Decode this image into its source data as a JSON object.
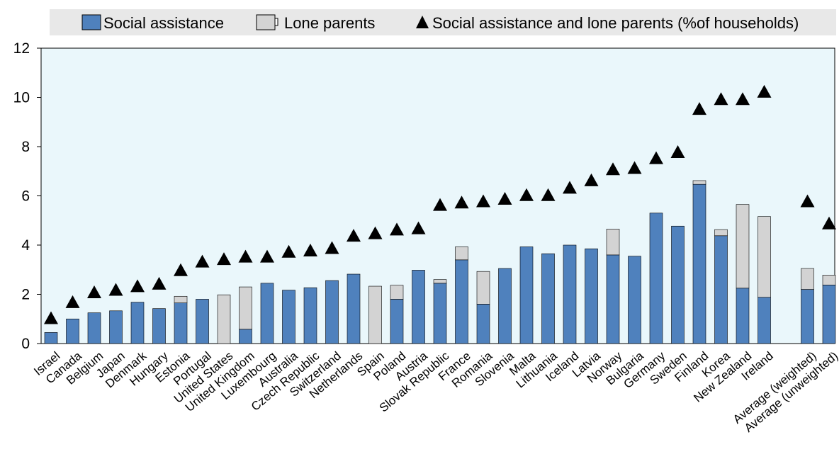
{
  "legend": {
    "social_assistance": "Social assistance",
    "lone_parents": "Lone parents",
    "combined": "Social assistance and lone parents (%of households)"
  },
  "colors": {
    "social_assistance": "#4f81bd",
    "lone_parents": "#d3d3d3",
    "marker": "#000000",
    "plot_background": "#eaf7fb",
    "legend_background": "#e8e8e8"
  },
  "chart_data": {
    "type": "bar",
    "stacked": true,
    "categories": [
      "Israel",
      "Canada",
      "Belgium",
      "Japan",
      "Denmark",
      "Hungary",
      "Estonia",
      "Portugal",
      "United States",
      "United Kingdom",
      "Luxembourg",
      "Australia",
      "Czech Republic",
      "Switzerland",
      "Netherlands",
      "Spain",
      "Poland",
      "Austria",
      "Slovak Republic",
      "France",
      "Romania",
      "Slovenia",
      "Malta",
      "Lithuania",
      "Iceland",
      "Latvia",
      "Norway",
      "Bulgaria",
      "Germany",
      "Sweden",
      "Finland",
      "Korea",
      "New Zealand",
      "Ireland",
      "",
      "Average (weighted)",
      "Average (unweighted)"
    ],
    "series": [
      {
        "name": "Social assistance",
        "kind": "bar",
        "values": [
          0.45,
          1.0,
          1.25,
          1.33,
          1.68,
          1.42,
          1.65,
          1.8,
          0,
          0.58,
          2.45,
          2.17,
          2.27,
          2.56,
          2.82,
          0,
          1.8,
          2.98,
          2.45,
          3.4,
          1.6,
          3.05,
          3.93,
          3.65,
          4.0,
          3.85,
          3.6,
          3.55,
          5.3,
          4.77,
          6.47,
          4.38,
          2.25,
          1.88,
          null,
          2.2,
          2.38
        ]
      },
      {
        "name": "Lone parents",
        "kind": "bar",
        "values": [
          0,
          0,
          0,
          0,
          0,
          0,
          0.27,
          0,
          1.98,
          1.72,
          0,
          0,
          0,
          0,
          0,
          2.33,
          0.57,
          0,
          0.15,
          0.53,
          1.33,
          0,
          0,
          0,
          0,
          0,
          1.05,
          0,
          0,
          0,
          0.15,
          0.25,
          3.4,
          3.28,
          null,
          0.85,
          0.4
        ]
      },
      {
        "name": "Social assistance and lone parents (%of households)",
        "kind": "marker",
        "values": [
          1.05,
          1.7,
          2.1,
          2.2,
          2.35,
          2.45,
          3.0,
          3.35,
          3.45,
          3.55,
          3.55,
          3.75,
          3.8,
          3.9,
          4.4,
          4.5,
          4.65,
          4.7,
          5.65,
          5.75,
          5.8,
          5.9,
          6.05,
          6.05,
          6.35,
          6.65,
          7.1,
          7.15,
          7.55,
          7.8,
          9.55,
          9.95,
          9.95,
          10.25,
          null,
          5.8,
          4.9
        ]
      }
    ],
    "title": "",
    "xlabel": "",
    "ylabel": "",
    "ylim": [
      0,
      12
    ],
    "yticks": [
      0,
      2,
      4,
      6,
      8,
      10,
      12
    ],
    "grid": false,
    "legend_position": "top"
  }
}
